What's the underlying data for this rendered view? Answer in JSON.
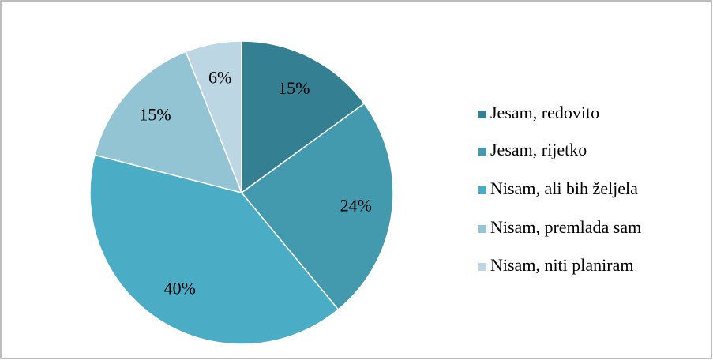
{
  "chart_data": {
    "type": "pie",
    "categories": [
      "Jesam, redovito",
      "Jesam, rijetko",
      "Nisam, ali bih željela",
      "Nisam, premlada sam",
      "Nisam, niti planiram"
    ],
    "values": [
      15,
      24,
      40,
      15,
      6
    ],
    "value_labels": [
      "15%",
      "24%",
      "40%",
      "15%",
      "6%"
    ],
    "colors": [
      "#357f93",
      "#4399ae",
      "#4bacc6",
      "#93c4d4",
      "#bcd7e3"
    ],
    "legend": "right"
  }
}
